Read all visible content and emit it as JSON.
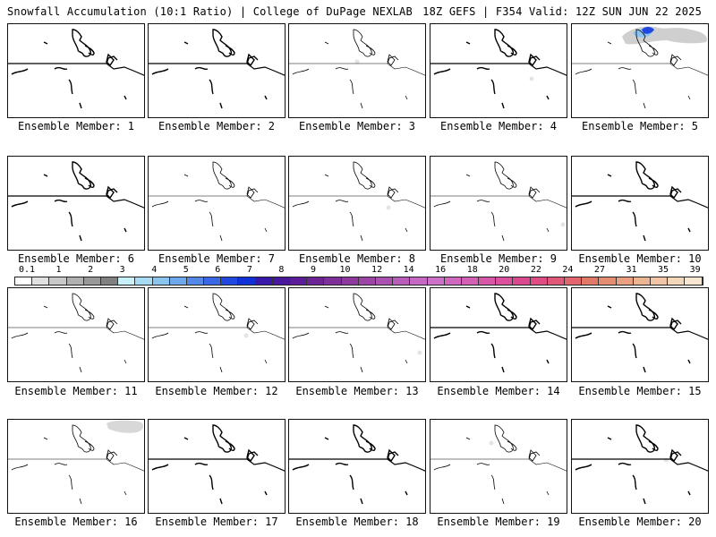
{
  "header": {
    "left": "Snowfall Accumulation (10:1 Ratio) | College of DuPage NEXLAB",
    "right": "18Z GEFS | F354 Valid: 12Z SUN JUN 22 2025"
  },
  "member_prefix": "Ensemble Member: ",
  "panels": [
    {
      "label": "Ensemble Member: 1",
      "snow": "none",
      "bold": true
    },
    {
      "label": "Ensemble Member: 2",
      "snow": "none",
      "bold": true
    },
    {
      "label": "Ensemble Member: 3",
      "snow": "trace",
      "bold": false
    },
    {
      "label": "Ensemble Member: 4",
      "snow": "trace",
      "bold": true
    },
    {
      "label": "Ensemble Member: 5",
      "snow": "heavy",
      "bold": false
    },
    {
      "label": "Ensemble Member: 6",
      "snow": "none",
      "bold": true
    },
    {
      "label": "Ensemble Member: 7",
      "snow": "none",
      "bold": false
    },
    {
      "label": "Ensemble Member: 8",
      "snow": "trace",
      "bold": false
    },
    {
      "label": "Ensemble Member: 9",
      "snow": "trace",
      "bold": false
    },
    {
      "label": "Ensemble Member: 10",
      "snow": "none",
      "bold": true
    },
    {
      "label": "Ensemble Member: 11",
      "snow": "none",
      "bold": false
    },
    {
      "label": "Ensemble Member: 12",
      "snow": "trace",
      "bold": false
    },
    {
      "label": "Ensemble Member: 13",
      "snow": "trace",
      "bold": false
    },
    {
      "label": "Ensemble Member: 14",
      "snow": "none",
      "bold": true
    },
    {
      "label": "Ensemble Member: 15",
      "snow": "none",
      "bold": true
    },
    {
      "label": "Ensemble Member: 16",
      "snow": "light",
      "bold": false
    },
    {
      "label": "Ensemble Member: 17",
      "snow": "none",
      "bold": true
    },
    {
      "label": "Ensemble Member: 18",
      "snow": "none",
      "bold": true
    },
    {
      "label": "Ensemble Member: 19",
      "snow": "trace",
      "bold": false
    },
    {
      "label": "Ensemble Member: 20",
      "snow": "trace",
      "bold": true
    }
  ],
  "legend": {
    "labels": [
      "0.1",
      "1",
      "2",
      "3",
      "4",
      "5",
      "6",
      "7",
      "8",
      "9",
      "10",
      "12",
      "14",
      "16",
      "18",
      "20",
      "22",
      "24",
      "27",
      "31",
      "35",
      "39"
    ],
    "colors": [
      "#ffffff",
      "#e0e0e0",
      "#c8c8c8",
      "#b0b0b0",
      "#989898",
      "#808080",
      "#c8f0f8",
      "#a8dcf4",
      "#8cc4f0",
      "#6ea8ec",
      "#5488e8",
      "#3a68e4",
      "#2048e0",
      "#1030d8",
      "#3818a8",
      "#4a189c",
      "#5a1c98",
      "#6c2494",
      "#7e2e98",
      "#8e389e",
      "#9c44a6",
      "#aa50b0",
      "#b85cba",
      "#c468c4",
      "#cc70c8",
      "#d068c0",
      "#d460b4",
      "#d858a8",
      "#da509c",
      "#dc4890",
      "#de4c84",
      "#e05878",
      "#e2666e",
      "#e47868",
      "#e68c70",
      "#e8a080",
      "#ecb492",
      "#f0c6a6",
      "#f4d6ba",
      "#f8e6d0"
    ]
  }
}
